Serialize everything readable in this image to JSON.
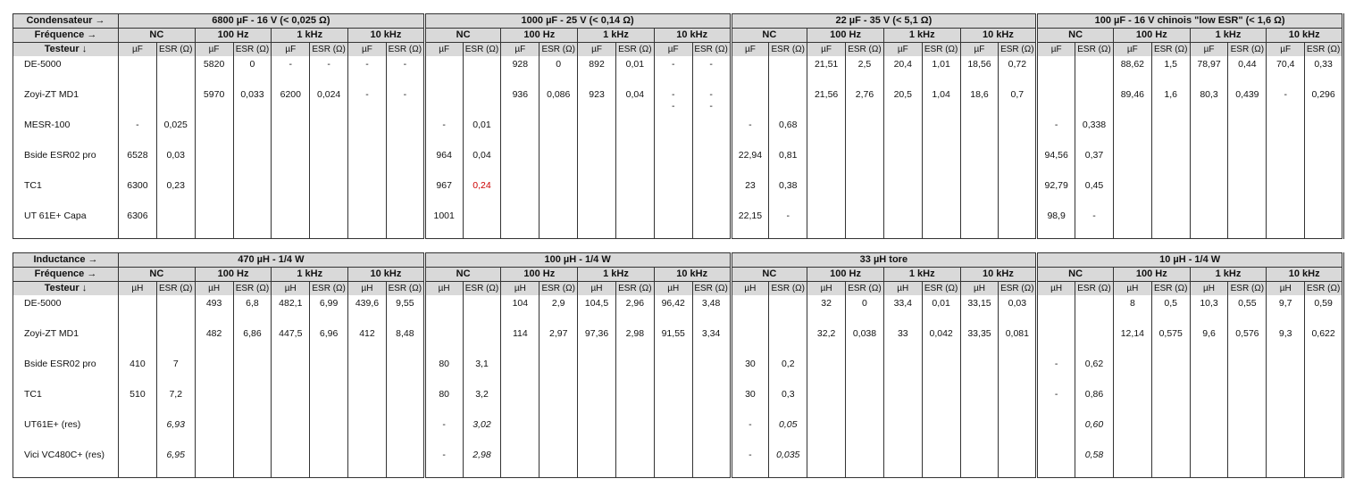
{
  "tables": [
    {
      "corner": [
        "Condensateur →",
        "Fréquence →",
        "Testeur ↓"
      ],
      "unit": "µF",
      "esr": "ESR (Ω)",
      "freqs": [
        "NC",
        "100 Hz",
        "1 kHz",
        "10 kHz"
      ],
      "groups": [
        "6800 µF - 16 V (< 0,025 Ω)",
        "1000 µF - 25 V (< 0,14 Ω)",
        "22 µF - 35 V (< 5,1 Ω)",
        "100 µF - 16 V chinois \"low ESR\" (< 1,6 Ω)"
      ],
      "rows": [
        {
          "tester": "DE-5000",
          "cells": [
            [
              "",
              "",
              "5820",
              "0",
              "-",
              "-",
              "-",
              "-"
            ],
            [
              "",
              "",
              "928",
              "0",
              "892",
              "0,01",
              "-",
              "-"
            ],
            [
              "",
              "",
              "21,51",
              "2,5",
              "20,4",
              "1,01",
              "18,56",
              "0,72"
            ],
            [
              "",
              "",
              "88,62",
              "1,5",
              "78,97",
              "0,44",
              "70,4",
              "0,33"
            ]
          ]
        },
        {
          "tester": "Zoyi-ZT MD1",
          "cells": [
            [
              "",
              "",
              "5970",
              "0,033",
              "6200",
              "0,024",
              "-",
              "-"
            ],
            [
              "",
              "",
              "936",
              "0,086",
              "923",
              "0,04",
              "-\n-",
              "-\n-"
            ],
            [
              "",
              "",
              "21,56",
              "2,76",
              "20,5",
              "1,04",
              "18,6",
              "0,7"
            ],
            [
              "",
              "",
              "89,46",
              "1,6",
              "80,3",
              "0,439",
              "-",
              "0,296"
            ]
          ]
        },
        {
          "tester": "MESR-100",
          "cells": [
            [
              "-",
              "0,025",
              "",
              "",
              "",
              "",
              "",
              ""
            ],
            [
              "-",
              "0,01",
              "",
              "",
              "",
              "",
              "",
              ""
            ],
            [
              "-",
              "0,68",
              "",
              "",
              "",
              "",
              "",
              ""
            ],
            [
              "-",
              "0,338",
              "",
              "",
              "",
              "",
              "",
              ""
            ]
          ]
        },
        {
          "tester": "Bside ESR02 pro",
          "cells": [
            [
              "6528",
              "0,03",
              "",
              "",
              "",
              "",
              "",
              ""
            ],
            [
              "964",
              "0,04",
              "",
              "",
              "",
              "",
              "",
              ""
            ],
            [
              "22,94",
              "0,81",
              "",
              "",
              "",
              "",
              "",
              ""
            ],
            [
              "94,56",
              "0,37",
              "",
              "",
              "",
              "",
              "",
              ""
            ]
          ]
        },
        {
          "tester": "TC1",
          "cells": [
            [
              "6300",
              "0,23",
              "",
              "",
              "",
              "",
              "",
              ""
            ],
            [
              "967",
              {
                "v": "0,24",
                "color": "#cc0000"
              },
              "",
              "",
              "",
              "",
              "",
              ""
            ],
            [
              "23",
              "0,38",
              "",
              "",
              "",
              "",
              "",
              ""
            ],
            [
              "92,79",
              "0,45",
              "",
              "",
              "",
              "",
              "",
              ""
            ]
          ]
        },
        {
          "tester": "UT 61E+ Capa",
          "cells": [
            [
              "6306",
              "",
              "",
              "",
              "",
              "",
              "",
              ""
            ],
            [
              "1001",
              "",
              "",
              "",
              "",
              "",
              "",
              ""
            ],
            [
              "22,15",
              "-",
              "",
              "",
              "",
              "",
              "",
              ""
            ],
            [
              "98,9",
              "-",
              "",
              "",
              "",
              "",
              "",
              ""
            ]
          ]
        }
      ]
    },
    {
      "corner": [
        "Inductance →",
        "Fréquence →",
        "Testeur ↓"
      ],
      "unit": "µH",
      "esr": "ESR (Ω)",
      "freqs": [
        "NC",
        "100 Hz",
        "1 kHz",
        "10 kHz"
      ],
      "groups": [
        "470 µH - 1/4 W",
        "100 µH - 1/4 W",
        "33 µH tore",
        "10 µH - 1/4 W"
      ],
      "rows": [
        {
          "tester": "DE-5000",
          "cells": [
            [
              "",
              "",
              "493",
              "6,8",
              "482,1",
              "6,99",
              "439,6",
              "9,55"
            ],
            [
              "",
              "",
              "104",
              "2,9",
              "104,5",
              "2,96",
              "96,42",
              "3,48"
            ],
            [
              "",
              "",
              "32",
              "0",
              "33,4",
              "0,01",
              "33,15",
              "0,03"
            ],
            [
              "",
              "",
              "8",
              "0,5",
              "10,3",
              "0,55",
              "9,7",
              "0,59"
            ]
          ]
        },
        {
          "tester": "Zoyi-ZT MD1",
          "cells": [
            [
              "",
              "",
              "482",
              "6,86",
              "447,5",
              "6,96",
              "412",
              "8,48"
            ],
            [
              "",
              "",
              "114",
              "2,97",
              "97,36",
              "2,98",
              "91,55",
              "3,34"
            ],
            [
              "",
              "",
              "32,2",
              "0,038",
              "33",
              "0,042",
              "33,35",
              "0,081"
            ],
            [
              "",
              "",
              "12,14",
              "0,575",
              "9,6",
              "0,576",
              "9,3",
              "0,622"
            ]
          ]
        },
        {
          "tester": "Bside ESR02 pro",
          "cells": [
            [
              "410",
              "7",
              "",
              "",
              "",
              "",
              "",
              ""
            ],
            [
              "80",
              "3,1",
              "",
              "",
              "",
              "",
              "",
              ""
            ],
            [
              "30",
              "0,2",
              "",
              "",
              "",
              "",
              "",
              ""
            ],
            [
              "-",
              "0,62",
              "",
              "",
              "",
              "",
              "",
              ""
            ]
          ]
        },
        {
          "tester": "TC1",
          "cells": [
            [
              "510",
              "7,2",
              "",
              "",
              "",
              "",
              "",
              ""
            ],
            [
              "80",
              "3,2",
              "",
              "",
              "",
              "",
              "",
              ""
            ],
            [
              "30",
              "0,3",
              "",
              "",
              "",
              "",
              "",
              ""
            ],
            [
              "-",
              "0,86",
              "",
              "",
              "",
              "",
              "",
              ""
            ]
          ]
        },
        {
          "tester": "UT61E+ (res)",
          "cells": [
            [
              "",
              {
                "v": "6,93",
                "italic": true
              },
              "",
              "",
              "",
              "",
              "",
              ""
            ],
            [
              "-",
              {
                "v": "3,02",
                "italic": true
              },
              "",
              "",
              "",
              "",
              "",
              ""
            ],
            [
              "-",
              {
                "v": "0,05",
                "italic": true
              },
              "",
              "",
              "",
              "",
              "",
              ""
            ],
            [
              "",
              {
                "v": "0,60",
                "italic": true
              },
              "",
              "",
              "",
              "",
              "",
              ""
            ]
          ]
        },
        {
          "tester": "Vici VC480C+ (res)",
          "cells": [
            [
              "",
              {
                "v": "6,95",
                "italic": true
              },
              "",
              "",
              "",
              "",
              "",
              ""
            ],
            [
              "-",
              {
                "v": "2,98",
                "italic": true
              },
              "",
              "",
              "",
              "",
              "",
              ""
            ],
            [
              "-",
              {
                "v": "0,035",
                "italic": true
              },
              "",
              "",
              "",
              "",
              "",
              ""
            ],
            [
              "",
              {
                "v": "0,58",
                "italic": true
              },
              "",
              "",
              "",
              "",
              "",
              ""
            ]
          ]
        }
      ]
    }
  ]
}
